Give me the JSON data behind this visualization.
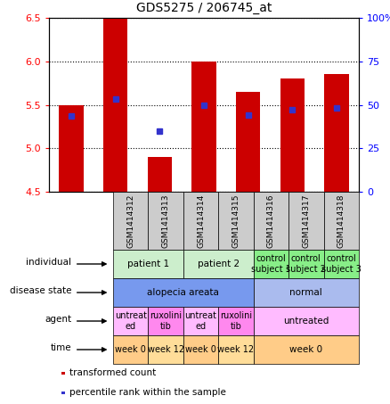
{
  "title": "GDS5275 / 206745_at",
  "samples": [
    "GSM1414312",
    "GSM1414313",
    "GSM1414314",
    "GSM1414315",
    "GSM1414316",
    "GSM1414317",
    "GSM1414318"
  ],
  "bar_values": [
    5.5,
    6.5,
    4.9,
    6.0,
    5.65,
    5.8,
    5.85
  ],
  "bar_bottom": 4.5,
  "percentile_values": [
    5.37,
    5.57,
    5.2,
    5.49,
    5.38,
    5.44,
    5.46
  ],
  "ylim": [
    4.5,
    6.5
  ],
  "yticks_left": [
    4.5,
    5.0,
    5.5,
    6.0,
    6.5
  ],
  "yticks_right_vals": [
    0,
    25,
    50,
    75,
    100
  ],
  "yticks_right_labels": [
    "0",
    "25",
    "50",
    "75",
    "100%"
  ],
  "bar_color": "#cc0000",
  "percentile_color": "#3333cc",
  "plot_bg": "#ffffff",
  "header_color": "#cccccc",
  "rows": [
    {
      "label": "individual",
      "cells": [
        {
          "text": "patient 1",
          "span": [
            0,
            1
          ],
          "color": "#cceecc"
        },
        {
          "text": "patient 2",
          "span": [
            2,
            3
          ],
          "color": "#cceecc"
        },
        {
          "text": "control\nsubject 1",
          "span": [
            4,
            4
          ],
          "color": "#88ee88"
        },
        {
          "text": "control\nsubject 2",
          "span": [
            5,
            5
          ],
          "color": "#88ee88"
        },
        {
          "text": "control\nsubject 3",
          "span": [
            6,
            6
          ],
          "color": "#88ee88"
        }
      ]
    },
    {
      "label": "disease state",
      "cells": [
        {
          "text": "alopecia areata",
          "span": [
            0,
            3
          ],
          "color": "#7799ee"
        },
        {
          "text": "normal",
          "span": [
            4,
            6
          ],
          "color": "#aabbee"
        }
      ]
    },
    {
      "label": "agent",
      "cells": [
        {
          "text": "untreat\ned",
          "span": [
            0,
            0
          ],
          "color": "#ffbbff"
        },
        {
          "text": "ruxolini\ntib",
          "span": [
            1,
            1
          ],
          "color": "#ff88ee"
        },
        {
          "text": "untreat\ned",
          "span": [
            2,
            2
          ],
          "color": "#ffbbff"
        },
        {
          "text": "ruxolini\ntib",
          "span": [
            3,
            3
          ],
          "color": "#ff88ee"
        },
        {
          "text": "untreated",
          "span": [
            4,
            6
          ],
          "color": "#ffbbff"
        }
      ]
    },
    {
      "label": "time",
      "cells": [
        {
          "text": "week 0",
          "span": [
            0,
            0
          ],
          "color": "#ffcc88"
        },
        {
          "text": "week 12",
          "span": [
            1,
            1
          ],
          "color": "#ffdd99"
        },
        {
          "text": "week 0",
          "span": [
            2,
            2
          ],
          "color": "#ffcc88"
        },
        {
          "text": "week 12",
          "span": [
            3,
            3
          ],
          "color": "#ffdd99"
        },
        {
          "text": "week 0",
          "span": [
            4,
            6
          ],
          "color": "#ffcc88"
        }
      ]
    }
  ],
  "legend": [
    {
      "color": "#cc0000",
      "label": "transformed count"
    },
    {
      "color": "#3333cc",
      "label": "percentile rank within the sample"
    }
  ],
  "figsize": [
    4.38,
    4.53
  ],
  "dpi": 100
}
